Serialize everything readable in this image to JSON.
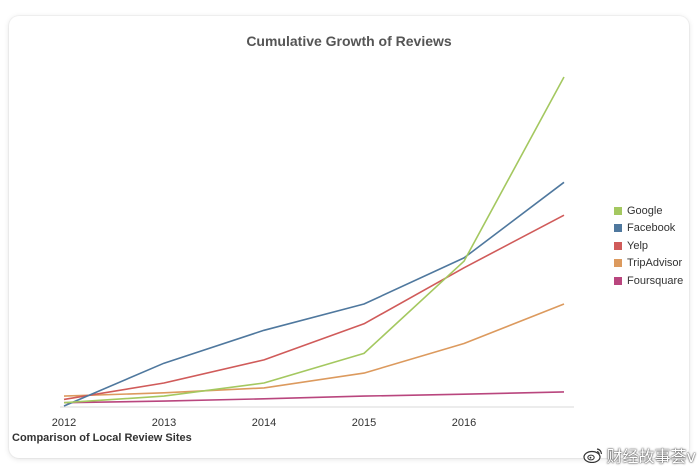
{
  "chart_data": {
    "type": "line",
    "title": "Cumulative Growth of Reviews",
    "subtitle": "Comparison of Local Review Sites",
    "xlabel": "",
    "ylabel": "",
    "categories": [
      "2012",
      "2013",
      "2014",
      "2015",
      "2016",
      ""
    ],
    "x": [
      2012,
      2013,
      2014,
      2015,
      2016,
      2017
    ],
    "xlim": [
      2012,
      2017
    ],
    "ylim": [
      0,
      100
    ],
    "grid": false,
    "legend_position": "right",
    "series": [
      {
        "name": "Google",
        "color": "#a4c860",
        "values": [
          1,
          3,
          7,
          16,
          44,
          100
        ]
      },
      {
        "name": "Facebook",
        "color": "#4f789e",
        "values": [
          0,
          13,
          23,
          31,
          45,
          68
        ]
      },
      {
        "name": "Yelp",
        "color": "#d05b5a",
        "values": [
          2,
          7,
          14,
          25,
          42,
          58
        ]
      },
      {
        "name": "TripAdvisor",
        "color": "#dc9a5e",
        "values": [
          3,
          4,
          5.5,
          10,
          19,
          31
        ]
      },
      {
        "name": "Foursquare",
        "color": "#b9467e",
        "values": [
          1,
          1.5,
          2.2,
          3,
          3.6,
          4.3
        ]
      }
    ]
  },
  "watermark": {
    "text": "财经故事荟v"
  }
}
